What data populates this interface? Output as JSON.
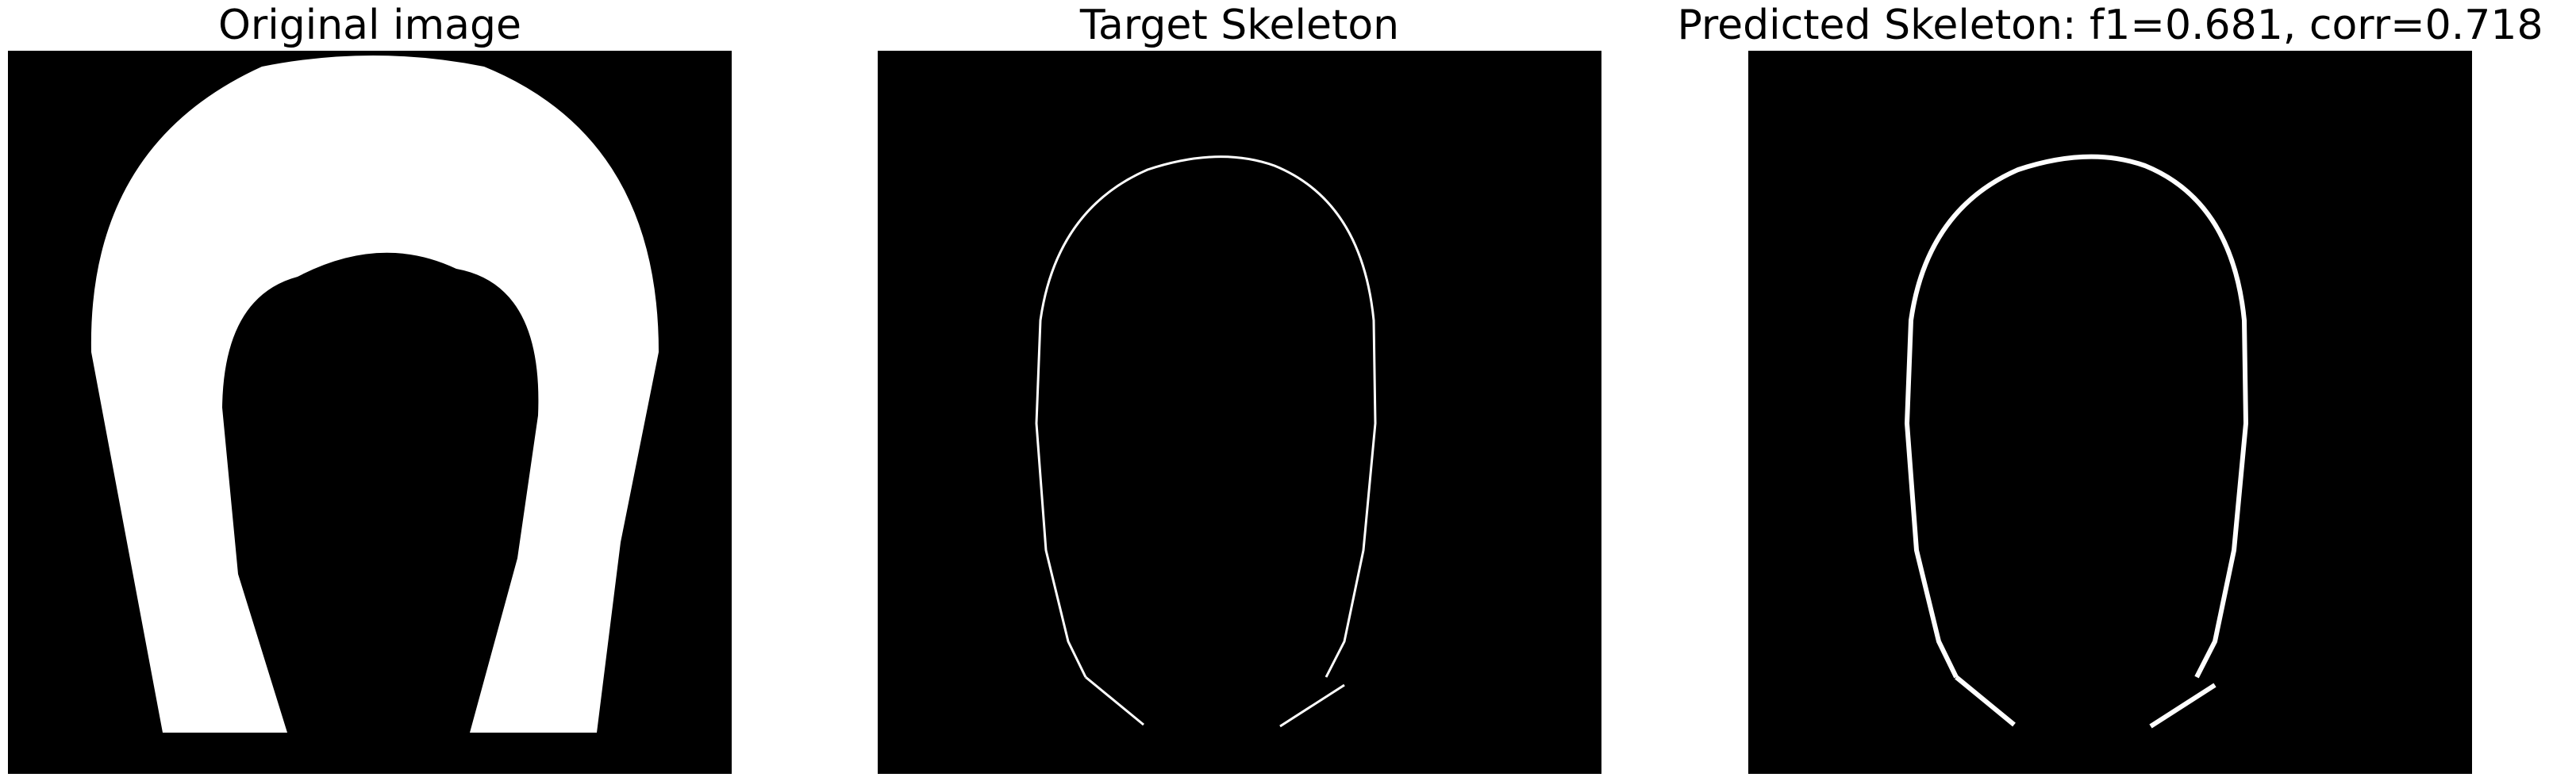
{
  "figure": {
    "colors": {
      "background": "#000000",
      "foreground": "#ffffff",
      "page": "#ffffff"
    },
    "panels": [
      {
        "title": "Original image",
        "content": "filled-horseshoe-shape"
      },
      {
        "title": "Target Skeleton",
        "content": "thin-skeleton-outline"
      },
      {
        "title": "Predicted Skeleton: f1=0.681, corr=0.718",
        "content": "thick-skeleton-outline"
      }
    ]
  }
}
